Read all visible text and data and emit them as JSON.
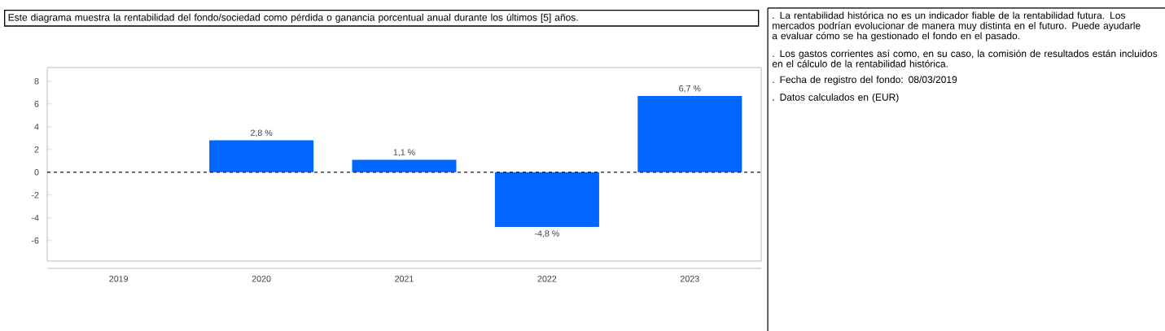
{
  "chart_data": {
    "type": "bar",
    "title": "Este diagrama muestra la rentabilidad del fondo/sociedad como pérdida o ganancia porcentual anual durante los últimos [5] años.",
    "categories": [
      "2019",
      "2020",
      "2021",
      "2022",
      "2023"
    ],
    "values": [
      null,
      2.8,
      1.1,
      -4.8,
      6.7
    ],
    "value_labels": [
      null,
      "2,8 %",
      "1,1 %",
      "-4,8 %",
      "6,7 %"
    ],
    "color": "#0066ff",
    "ylim": [
      -7.8,
      9.2
    ],
    "yticks": [
      -6,
      -4,
      -2,
      0,
      2,
      4,
      6,
      8
    ],
    "ref_lines": [
      {
        "axis": "y",
        "value": 0,
        "color": "#000000",
        "line_style": "dashed"
      }
    ],
    "annotations": [
      ". La rentabilidad histórica no es un indicador fiable de la rentabilidad futura. Los mercados podrían evolucionar de manera muy distinta en el futuro. Puede ayudarle a evaluar cómo se ha gestionado el fondo en el pasado.",
      ". Los gastos corrientes así como, en su caso, la comisión de resultados están incluidos en el cálculo de la rentabilidad histórica.",
      ". Fecha de registro del fondo: 08/03/2019",
      ". Datos calculados en (EUR)"
    ]
  }
}
